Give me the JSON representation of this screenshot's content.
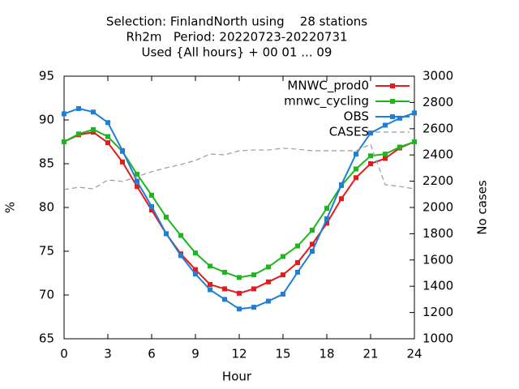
{
  "chart_data": {
    "type": "line",
    "title": [
      "Selection: FinlandNorth using    28 stations",
      "Rh2m   Period: 20220723-20220731",
      "Used {All hours} + 00 01 ... 09"
    ],
    "xlabel": "Hour",
    "ylabel": "%",
    "y2label": "No cases",
    "x": [
      0,
      1,
      2,
      3,
      4,
      5,
      6,
      7,
      8,
      9,
      10,
      11,
      12,
      13,
      14,
      15,
      16,
      17,
      18,
      19,
      20,
      21,
      22,
      23,
      24
    ],
    "xlim": [
      0,
      24
    ],
    "xticks": [
      0,
      3,
      6,
      9,
      12,
      15,
      18,
      21,
      24
    ],
    "ylim": [
      65,
      95
    ],
    "yticks": [
      65,
      70,
      75,
      80,
      85,
      90,
      95
    ],
    "y2lim": [
      1000,
      3000
    ],
    "y2ticks": [
      1000,
      1200,
      1400,
      1600,
      1800,
      2000,
      2200,
      2400,
      2600,
      2800,
      3000
    ],
    "legend": "top right",
    "series": [
      {
        "name": "MNWC_prod0",
        "color": "#e41a1c",
        "marker": true,
        "values": [
          87.5,
          88.3,
          88.6,
          87.4,
          85.2,
          82.4,
          79.7,
          77.0,
          74.7,
          72.9,
          71.2,
          70.7,
          70.2,
          70.7,
          71.5,
          72.3,
          73.7,
          75.8,
          78.2,
          81.0,
          83.4,
          85.0,
          85.6,
          86.8,
          87.5
        ]
      },
      {
        "name": "mnwc_cycling",
        "color": "#1fb51f",
        "marker": true,
        "values": [
          87.5,
          88.4,
          88.9,
          88.1,
          86.4,
          83.8,
          81.4,
          78.9,
          76.8,
          74.8,
          73.3,
          72.6,
          72.0,
          72.3,
          73.2,
          74.4,
          75.6,
          77.4,
          79.9,
          82.5,
          84.4,
          85.9,
          86.1,
          86.9,
          87.5
        ]
      },
      {
        "name": "OBS",
        "color": "#1e7fd6",
        "marker": true,
        "values": [
          90.7,
          91.3,
          90.9,
          89.7,
          86.5,
          83.0,
          80.1,
          77.0,
          74.5,
          72.4,
          70.6,
          69.5,
          68.4,
          68.6,
          69.3,
          70.1,
          72.6,
          75.0,
          78.7,
          82.6,
          86.1,
          88.5,
          89.4,
          90.2,
          90.8
        ]
      },
      {
        "name": "CASES",
        "color": "#999999",
        "marker": false,
        "dashed": true,
        "axis": "y2",
        "values": [
          2136,
          2154,
          2142,
          2210,
          2198,
          2235,
          2272,
          2302,
          2327,
          2358,
          2407,
          2401,
          2432,
          2438,
          2438,
          2451,
          2444,
          2432,
          2432,
          2432,
          2432,
          2481,
          2173,
          2160,
          2142
        ]
      }
    ]
  }
}
